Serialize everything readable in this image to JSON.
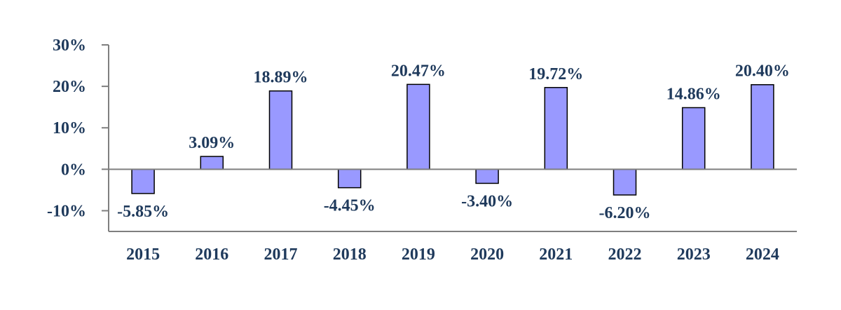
{
  "chart_data": {
    "type": "bar",
    "categories": [
      "2015",
      "2016",
      "2017",
      "2018",
      "2019",
      "2020",
      "2021",
      "2022",
      "2023",
      "2024"
    ],
    "values": [
      -5.85,
      3.09,
      18.89,
      -4.45,
      20.47,
      -3.4,
      19.72,
      -6.2,
      14.86,
      20.4
    ],
    "value_labels": [
      "-5.85%",
      "3.09%",
      "18.89%",
      "-4.45%",
      "20.47%",
      "-3.40%",
      "19.72%",
      "-6.20%",
      "14.86%",
      "20.40%"
    ],
    "title": "",
    "xlabel": "",
    "ylabel": "",
    "ylim": [
      -15,
      30
    ],
    "yticks": [
      -10,
      0,
      10,
      20,
      30
    ],
    "ytick_labels": [
      "-10%",
      "0%",
      "10%",
      "20%",
      "30%"
    ],
    "grid": false,
    "legend": "none",
    "colors": {
      "bar_fill": "#9999ff",
      "bar_stroke": "#000000",
      "axis": "#7f7f7f",
      "text": "#1f3a5c"
    }
  }
}
